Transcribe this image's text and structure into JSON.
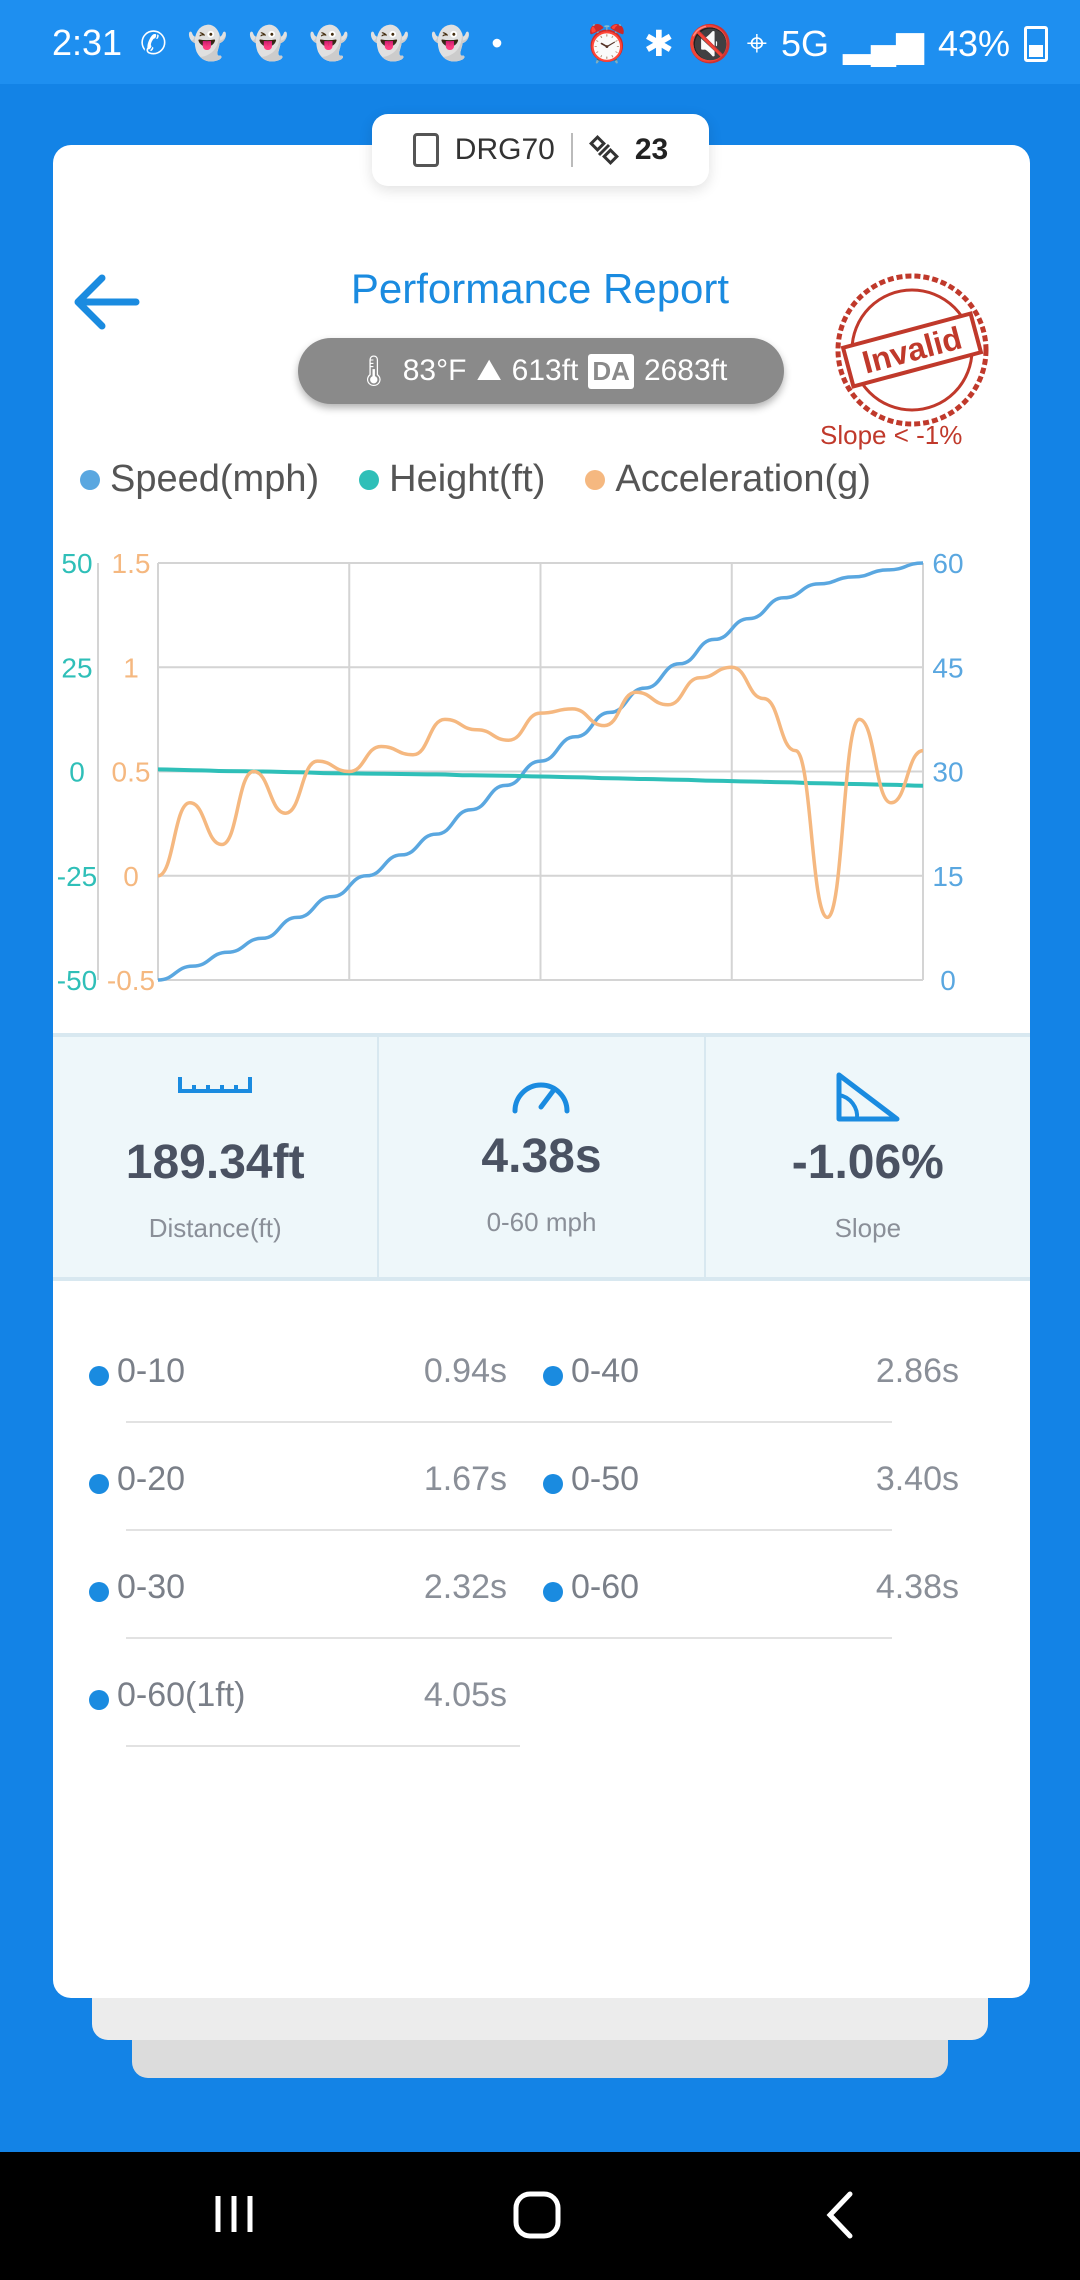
{
  "status_bar": {
    "time": "2:31",
    "notifications": "✆ 👻 👻 👻 👻 👻 •",
    "network": "5G",
    "battery": "43%"
  },
  "device": {
    "name": "DRG70",
    "satellites": "23"
  },
  "header": {
    "title": "Performance Report"
  },
  "conditions": {
    "temperature": "83°F",
    "altitude": "613ft",
    "da_badge": "DA",
    "density_altitude": "2683ft"
  },
  "stamp": {
    "text": "Invalid",
    "note": "Slope < -1%"
  },
  "legend": [
    {
      "label": "Speed(mph)",
      "color": "#5aa7e0"
    },
    {
      "label": "Height(ft)",
      "color": "#2fbfb8"
    },
    {
      "label": "Acceleration(g)",
      "color": "#f5b880"
    }
  ],
  "chart_data": {
    "type": "line",
    "axes": {
      "height_ticks": [
        "50",
        "25",
        "0",
        "-25",
        "-50"
      ],
      "accel_ticks": [
        "1.5",
        "1",
        "0.5",
        "0",
        "-0.5"
      ],
      "speed_ticks": [
        "60",
        "45",
        "30",
        "15",
        "0"
      ],
      "speed_range": [
        0,
        60
      ],
      "height_range": [
        -50,
        50
      ],
      "accel_range": [
        -0.5,
        1.5
      ]
    },
    "grid": true,
    "series": [
      {
        "name": "Speed(mph)",
        "color": "#5aa7e0",
        "values": [
          0,
          2,
          4,
          6,
          9,
          12,
          15,
          18,
          21,
          24.5,
          28,
          31.5,
          35,
          38.5,
          42,
          45.5,
          49,
          52,
          55,
          57,
          58,
          59,
          60
        ]
      },
      {
        "name": "Height(ft)",
        "color": "#2fbfb8",
        "values": [
          0.5,
          0.3,
          0.1,
          0,
          -0.2,
          -0.4,
          -0.5,
          -0.6,
          -0.7,
          -0.9,
          -1,
          -1.2,
          -1.4,
          -1.6,
          -1.8,
          -2,
          -2.2,
          -2.4,
          -2.6,
          -2.8,
          -3,
          -3.2,
          -3.4
        ]
      },
      {
        "name": "Acceleration(g)",
        "color": "#f5b880",
        "values": [
          0,
          0.35,
          0.15,
          0.5,
          0.3,
          0.55,
          0.5,
          0.62,
          0.58,
          0.75,
          0.7,
          0.65,
          0.78,
          0.8,
          0.72,
          0.88,
          0.82,
          0.95,
          1.0,
          0.85,
          0.6,
          -0.2,
          0.75,
          0.35,
          0.6
        ]
      }
    ]
  },
  "summary": [
    {
      "value": "189.34ft",
      "label": "Distance(ft)",
      "icon": "ruler-icon"
    },
    {
      "value": "4.38s",
      "label": "0-60 mph",
      "icon": "speedometer-icon"
    },
    {
      "value": "-1.06%",
      "label": "Slope",
      "icon": "slope-icon"
    }
  ],
  "splits": [
    {
      "name": "0-10",
      "time": "0.94s"
    },
    {
      "name": "0-40",
      "time": "2.86s"
    },
    {
      "name": "0-20",
      "time": "1.67s"
    },
    {
      "name": "0-50",
      "time": "3.40s"
    },
    {
      "name": "0-30",
      "time": "2.32s"
    },
    {
      "name": "0-60",
      "time": "4.38s"
    },
    {
      "name": "0-60(1ft)",
      "time": "4.05s"
    }
  ]
}
